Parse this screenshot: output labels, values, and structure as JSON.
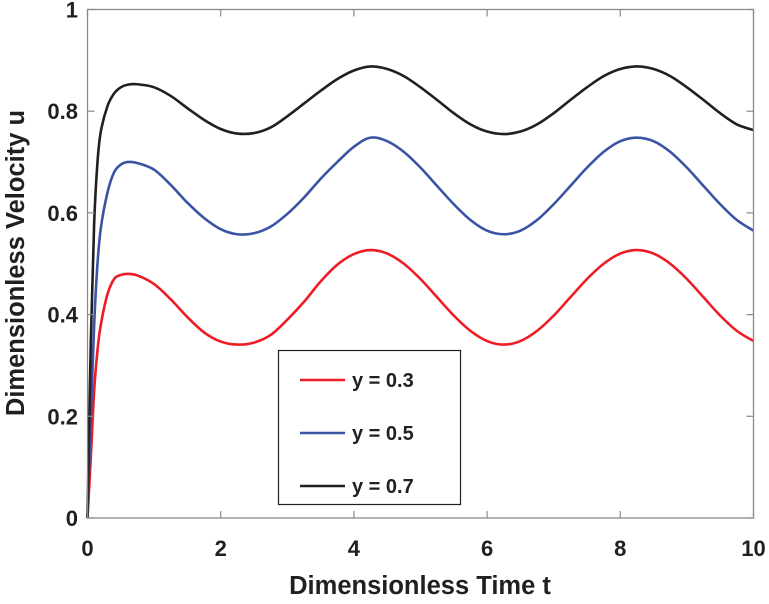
{
  "chart_data": {
    "type": "line",
    "title": "",
    "xlabel": "Dimensionless Time t",
    "ylabel": "Dimensionless Velocity u",
    "xlim": [
      0,
      10
    ],
    "ylim": [
      0,
      1
    ],
    "xticks": [
      "0",
      "2",
      "4",
      "6",
      "8",
      "10"
    ],
    "yticks": [
      "0",
      "0.2",
      "0.4",
      "0.6",
      "0.8",
      "1"
    ],
    "grid": false,
    "legend_position": "bottom-center",
    "x": [
      0,
      0.05,
      0.1,
      0.15,
      0.2,
      0.3,
      0.4,
      0.5,
      0.6,
      0.75,
      1,
      1.25,
      1.5,
      1.75,
      2,
      2.25,
      2.5,
      2.75,
      3,
      3.25,
      3.5,
      3.75,
      4,
      4.25,
      4.5,
      4.75,
      5,
      5.25,
      5.5,
      5.75,
      6,
      6.25,
      6.5,
      6.75,
      7,
      7.25,
      7.5,
      7.75,
      8,
      8.25,
      8.5,
      8.75,
      9,
      9.25,
      9.5,
      9.75,
      10
    ],
    "series": [
      {
        "name": "y = 0.3",
        "color": "#ee1c24",
        "values": [
          0,
          0.12,
          0.25,
          0.33,
          0.38,
          0.44,
          0.47,
          0.478,
          0.48,
          0.477,
          0.46,
          0.43,
          0.395,
          0.365,
          0.347,
          0.341,
          0.345,
          0.36,
          0.39,
          0.425,
          0.465,
          0.498,
          0.519,
          0.527,
          0.52,
          0.5,
          0.47,
          0.434,
          0.398,
          0.368,
          0.348,
          0.341,
          0.348,
          0.368,
          0.398,
          0.434,
          0.47,
          0.5,
          0.52,
          0.527,
          0.52,
          0.5,
          0.47,
          0.434,
          0.398,
          0.368,
          0.348
        ]
      },
      {
        "name": "y = 0.5",
        "color": "#3a53a4",
        "values": [
          0,
          0.2,
          0.38,
          0.5,
          0.57,
          0.64,
          0.68,
          0.695,
          0.7,
          0.698,
          0.685,
          0.655,
          0.62,
          0.59,
          0.568,
          0.558,
          0.56,
          0.573,
          0.598,
          0.63,
          0.667,
          0.7,
          0.73,
          0.748,
          0.741,
          0.72,
          0.689,
          0.653,
          0.617,
          0.586,
          0.565,
          0.558,
          0.565,
          0.586,
          0.617,
          0.653,
          0.689,
          0.72,
          0.741,
          0.748,
          0.741,
          0.72,
          0.689,
          0.653,
          0.617,
          0.586,
          0.565
        ]
      },
      {
        "name": "y = 0.7",
        "color": "#231f20",
        "values": [
          0,
          0.35,
          0.58,
          0.7,
          0.76,
          0.81,
          0.835,
          0.847,
          0.852,
          0.853,
          0.847,
          0.83,
          0.806,
          0.783,
          0.765,
          0.756,
          0.757,
          0.768,
          0.79,
          0.815,
          0.84,
          0.863,
          0.88,
          0.888,
          0.883,
          0.869,
          0.847,
          0.822,
          0.796,
          0.774,
          0.76,
          0.755,
          0.76,
          0.774,
          0.796,
          0.822,
          0.847,
          0.869,
          0.883,
          0.888,
          0.883,
          0.869,
          0.847,
          0.822,
          0.796,
          0.774,
          0.763
        ]
      }
    ]
  }
}
